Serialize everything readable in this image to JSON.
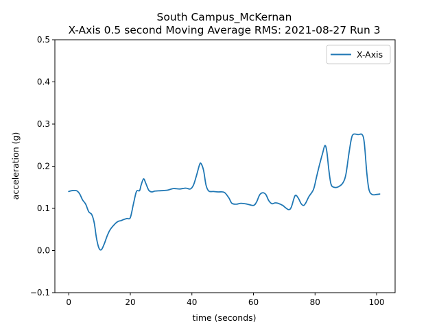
{
  "chart_data": {
    "type": "line",
    "title_line1": "South Campus_McKernan",
    "title_line2": "X-Axis 0.5 second Moving Average RMS: 2021-08-27 Run 3",
    "xlabel": "time (seconds)",
    "ylabel": "acceleration (g)",
    "xlim": [
      -4.5,
      106
    ],
    "ylim": [
      -0.1,
      0.5
    ],
    "xticks": [
      0,
      20,
      40,
      60,
      80,
      100
    ],
    "yticks": [
      -0.1,
      0.0,
      0.1,
      0.2,
      0.3,
      0.4,
      0.5
    ],
    "grid": false,
    "legend_position": "top-right",
    "series": [
      {
        "name": "X-Axis",
        "color": "#1f77b4",
        "points": [
          [
            0,
            0.14
          ],
          [
            1,
            0.142
          ],
          [
            2.5,
            0.142
          ],
          [
            3.5,
            0.135
          ],
          [
            4.5,
            0.12
          ],
          [
            5.5,
            0.11
          ],
          [
            6.5,
            0.092
          ],
          [
            7.5,
            0.085
          ],
          [
            8.3,
            0.065
          ],
          [
            9,
            0.03
          ],
          [
            9.8,
            0.006
          ],
          [
            10.6,
            0.002
          ],
          [
            11.5,
            0.015
          ],
          [
            12.5,
            0.035
          ],
          [
            13.5,
            0.05
          ],
          [
            15,
            0.063
          ],
          [
            16,
            0.069
          ],
          [
            17,
            0.071
          ],
          [
            18,
            0.074
          ],
          [
            19,
            0.076
          ],
          [
            20,
            0.078
          ],
          [
            21,
            0.11
          ],
          [
            22,
            0.14
          ],
          [
            23,
            0.142
          ],
          [
            23.5,
            0.155
          ],
          [
            24.3,
            0.17
          ],
          [
            25,
            0.16
          ],
          [
            26,
            0.143
          ],
          [
            27,
            0.139
          ],
          [
            28,
            0.141
          ],
          [
            30,
            0.142
          ],
          [
            32,
            0.143
          ],
          [
            34,
            0.147
          ],
          [
            36,
            0.146
          ],
          [
            38,
            0.148
          ],
          [
            39.5,
            0.146
          ],
          [
            40.5,
            0.155
          ],
          [
            41.5,
            0.178
          ],
          [
            42.5,
            0.204
          ],
          [
            43,
            0.206
          ],
          [
            43.8,
            0.19
          ],
          [
            44.6,
            0.155
          ],
          [
            45.5,
            0.141
          ],
          [
            47,
            0.14
          ],
          [
            48.5,
            0.139
          ],
          [
            50.5,
            0.138
          ],
          [
            52,
            0.125
          ],
          [
            53,
            0.112
          ],
          [
            54.5,
            0.11
          ],
          [
            56,
            0.112
          ],
          [
            58,
            0.11
          ],
          [
            60,
            0.107
          ],
          [
            61,
            0.115
          ],
          [
            62,
            0.132
          ],
          [
            63,
            0.137
          ],
          [
            64,
            0.133
          ],
          [
            65,
            0.118
          ],
          [
            66,
            0.111
          ],
          [
            67,
            0.113
          ],
          [
            68,
            0.112
          ],
          [
            69.5,
            0.107
          ],
          [
            70.5,
            0.101
          ],
          [
            71.5,
            0.097
          ],
          [
            72.3,
            0.103
          ],
          [
            73.5,
            0.13
          ],
          [
            74.5,
            0.125
          ],
          [
            75.5,
            0.111
          ],
          [
            76.3,
            0.107
          ],
          [
            77,
            0.113
          ],
          [
            78,
            0.128
          ],
          [
            79.5,
            0.145
          ],
          [
            80.5,
            0.175
          ],
          [
            81.5,
            0.205
          ],
          [
            82.5,
            0.232
          ],
          [
            83.2,
            0.249
          ],
          [
            83.8,
            0.236
          ],
          [
            84.5,
            0.19
          ],
          [
            85.2,
            0.157
          ],
          [
            86.2,
            0.15
          ],
          [
            87.5,
            0.151
          ],
          [
            89,
            0.16
          ],
          [
            90,
            0.18
          ],
          [
            91,
            0.23
          ],
          [
            91.8,
            0.265
          ],
          [
            92.5,
            0.276
          ],
          [
            94,
            0.275
          ],
          [
            95.3,
            0.275
          ],
          [
            96,
            0.255
          ],
          [
            96.8,
            0.185
          ],
          [
            97.5,
            0.145
          ],
          [
            98.5,
            0.133
          ],
          [
            100,
            0.133
          ],
          [
            101,
            0.134
          ]
        ]
      }
    ]
  }
}
